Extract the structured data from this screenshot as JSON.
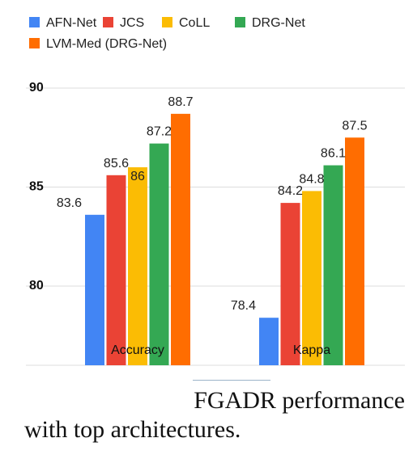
{
  "chart_data": {
    "type": "bar",
    "categories": [
      "Accuracy",
      "Kappa"
    ],
    "series": [
      {
        "name": "AFN-Net",
        "values": [
          83.6,
          78.4
        ],
        "color": "#4285F4"
      },
      {
        "name": "JCS",
        "values": [
          85.6,
          84.2
        ],
        "color": "#EA4335"
      },
      {
        "name": "CoLL",
        "values": [
          86,
          84.8
        ],
        "color": "#FBBC04"
      },
      {
        "name": "DRG-Net",
        "values": [
          87.2,
          86.1
        ],
        "color": "#34A853"
      },
      {
        "name": "LVM-Med (DRG-Net)",
        "values": [
          88.7,
          87.5
        ],
        "color": "#FF6D01"
      }
    ],
    "y_ticks": [
      "80",
      "85",
      "90"
    ],
    "ylim": [
      76.0,
      90.5
    ],
    "grid": true,
    "legend": "top-left"
  },
  "caption": {
    "line1": "FGADR performance",
    "line2": "with top architectures."
  }
}
